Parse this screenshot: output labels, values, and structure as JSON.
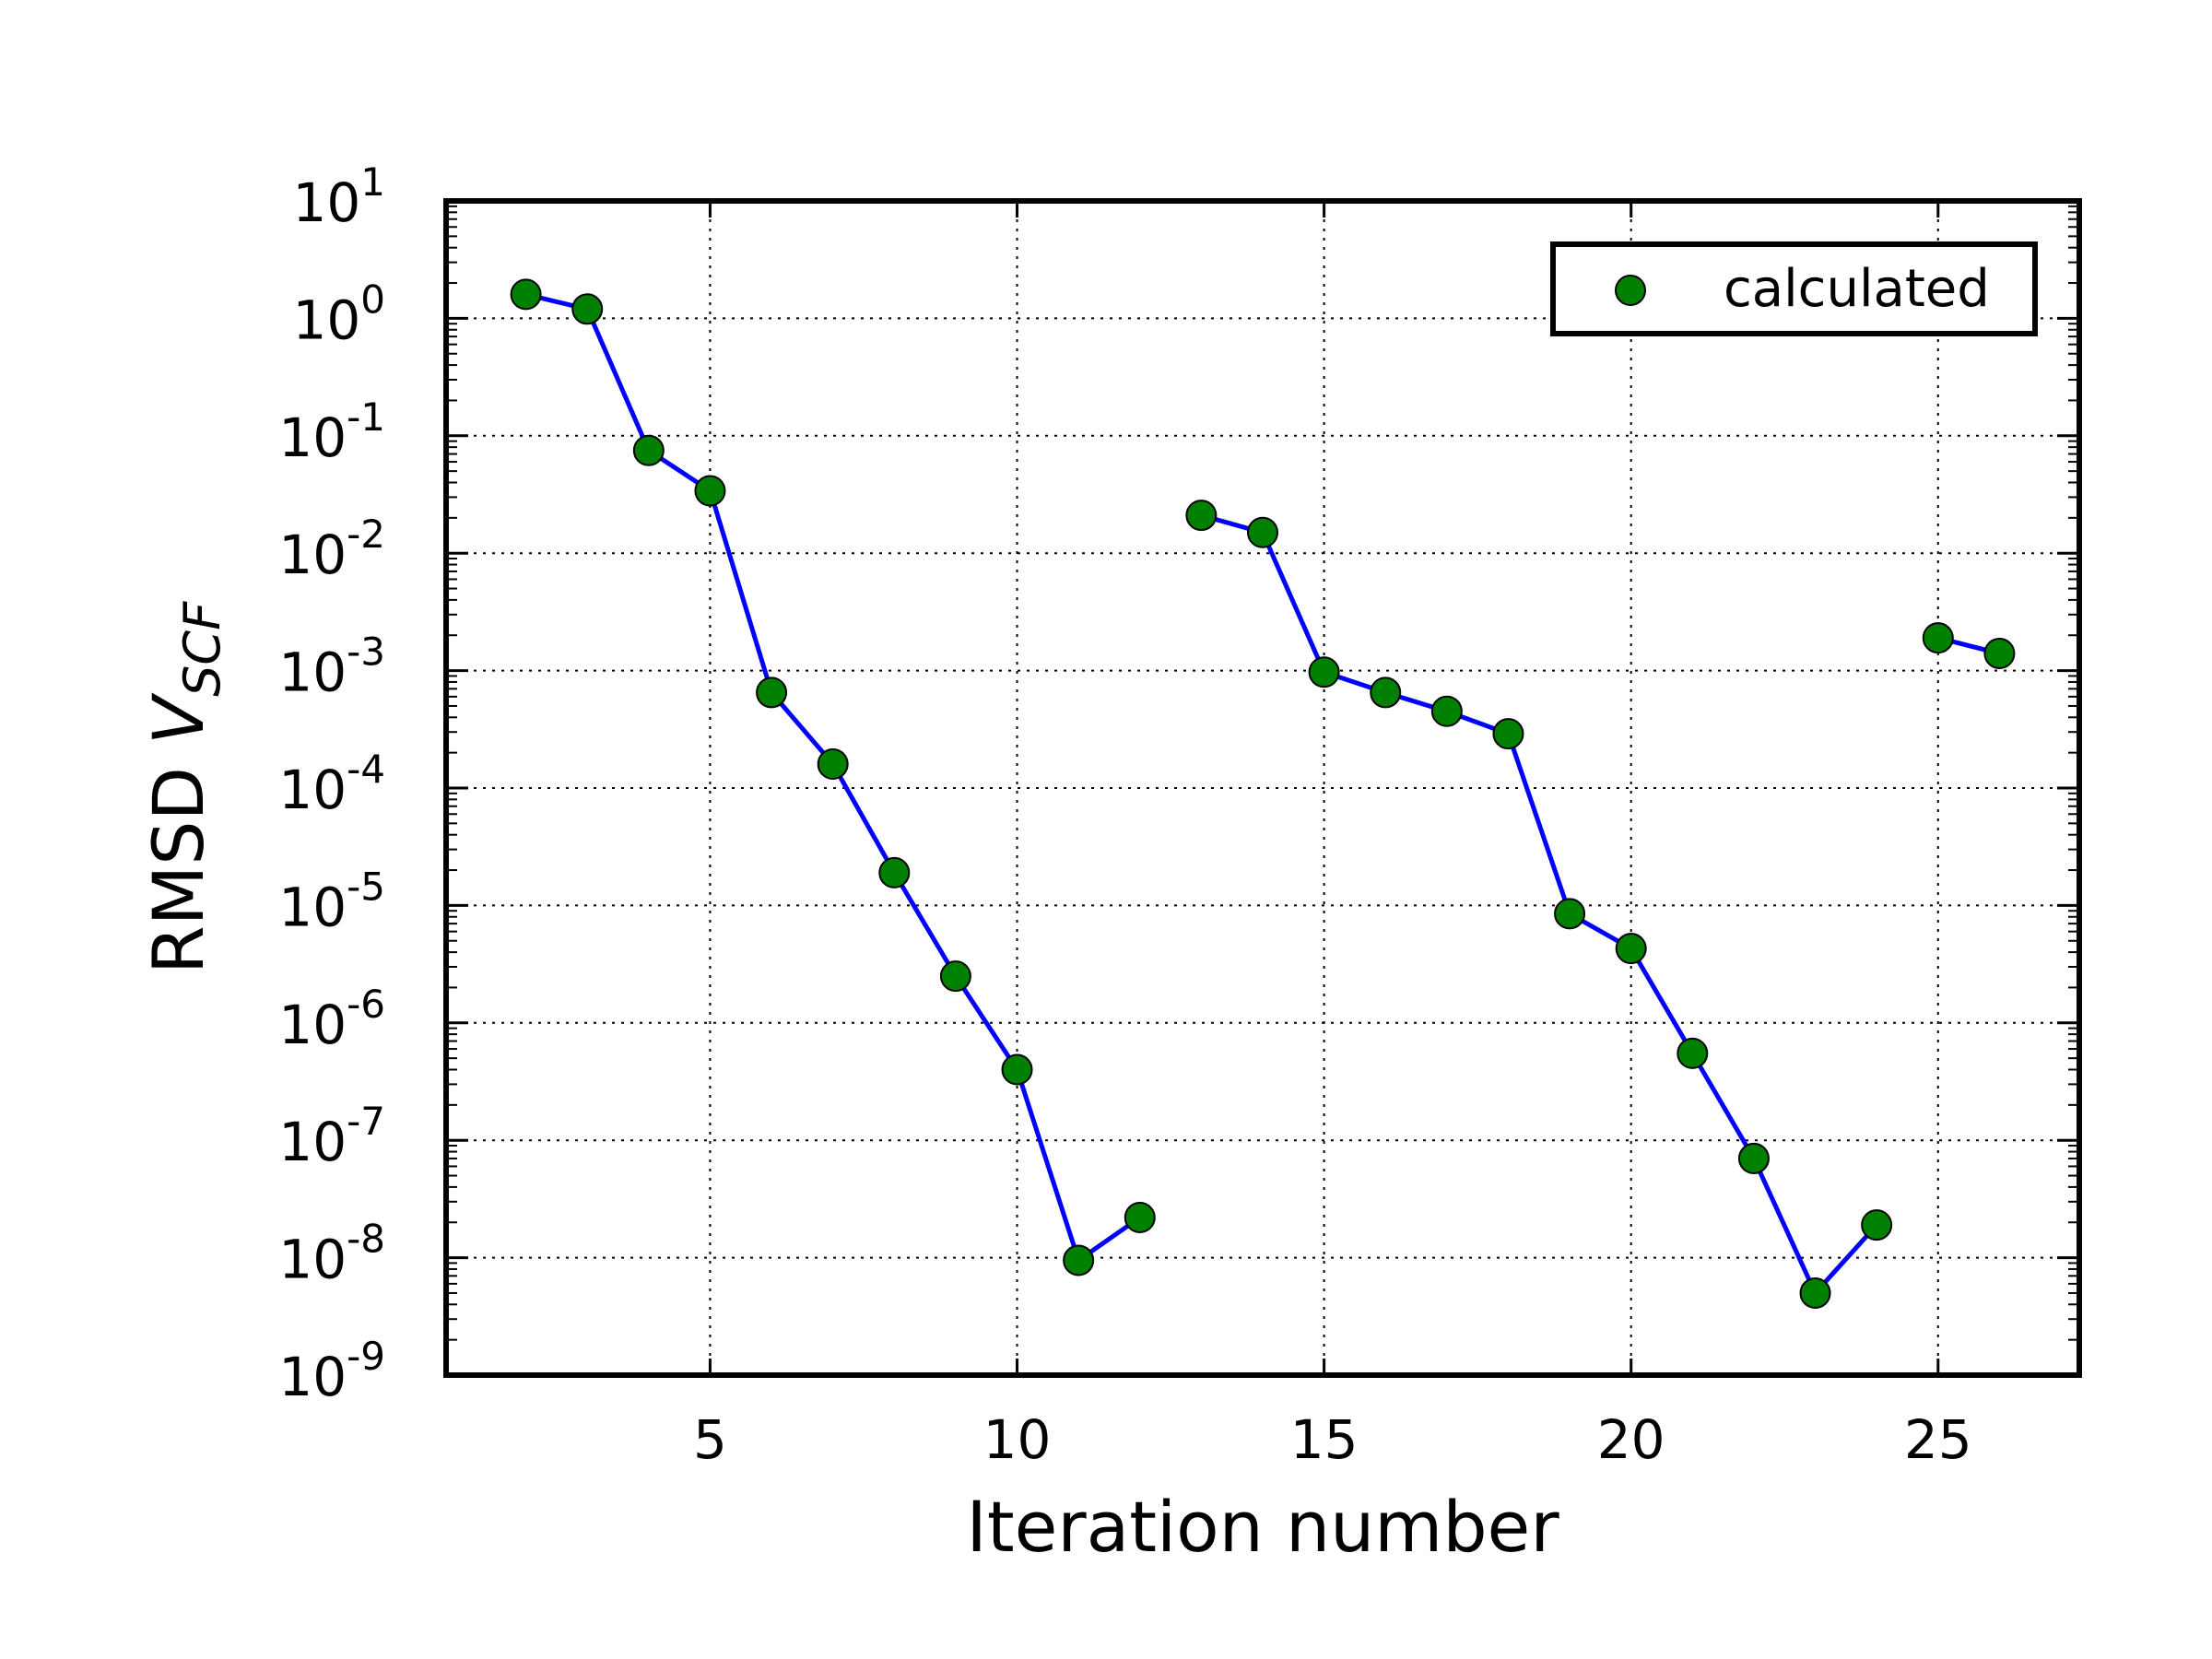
{
  "chart_data": {
    "type": "line",
    "xlabel": "Iteration number",
    "ylabel_main": "RMSD ",
    "ylabel_var": "V",
    "ylabel_sub": "SCF",
    "yscale": "log",
    "xlim": [
      0.7,
      27.3
    ],
    "ylim_exponents": [
      -9,
      1
    ],
    "x_ticks": [
      5,
      10,
      15,
      20,
      25
    ],
    "y_tick_exponents": [
      -9,
      -8,
      -7,
      -6,
      -5,
      -4,
      -3,
      -2,
      -1,
      0,
      1
    ],
    "grid": true,
    "legend_position": "top-right",
    "series": [
      {
        "name": "calculated",
        "line_color": "#0000ff",
        "marker_color": "#008000",
        "segments": [
          {
            "x": [
              2,
              3,
              4,
              5,
              6,
              7,
              8,
              9,
              10,
              11,
              12
            ],
            "y": [
              1.6,
              1.2,
              0.075,
              0.034,
              0.00065,
              0.00016,
              1.9e-05,
              2.5e-06,
              4e-07,
              9.5e-09,
              2.2e-08
            ]
          },
          {
            "x": [
              13,
              14,
              15,
              16,
              17,
              18,
              19,
              20,
              21,
              22,
              23,
              24
            ],
            "y": [
              0.021,
              0.015,
              0.00097,
              0.00065,
              0.00045,
              0.00029,
              8.5e-06,
              4.3e-06,
              5.5e-07,
              7e-08,
              5e-09,
              1.9e-08
            ]
          },
          {
            "x": [
              25,
              26
            ],
            "y": [
              0.0019,
              0.0014
            ]
          }
        ]
      }
    ]
  }
}
